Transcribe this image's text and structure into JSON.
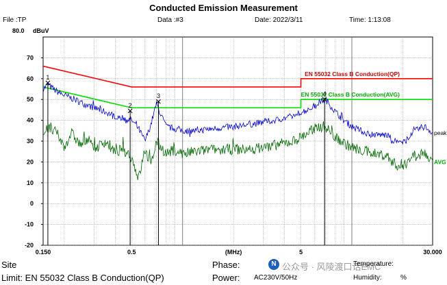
{
  "header": {
    "title": "Conducted Emission Measurement",
    "file": "File :TP",
    "data": "Data :#3",
    "date": "Date: 2022/3/11",
    "time": "Time: 1:13:08"
  },
  "footer": {
    "site": "Site",
    "limit": "Limit: EN 55032 Class B Conduction(QP)",
    "phase_label": "Phase:",
    "power_label": "Power:",
    "power_value": "AC230V/50Hz",
    "temperature_label": "Temperature:",
    "humidity_label": "Humidity:",
    "humidity_value": "%",
    "watermark": "公众号 · 风陵渡口话EMC",
    "watermark_logo": "N"
  },
  "chart_data": {
    "type": "line",
    "ytop_label": "80.0",
    "yunit": "dBuV",
    "xunit": "(MHz)",
    "xlog": true,
    "xlim": [
      0.15,
      30
    ],
    "ylim": [
      -20,
      80
    ],
    "yticks": [
      -20,
      -10,
      0,
      10,
      20,
      30,
      40,
      50,
      60,
      70
    ],
    "xticks": [
      {
        "v": 0.15,
        "label": "0.150"
      },
      {
        "v": 0.5,
        "label": "0.5"
      },
      {
        "v": 5,
        "label": "5"
      },
      {
        "v": 30,
        "label": "30.000"
      }
    ],
    "x_unit_at": 2,
    "limits": [
      {
        "name": "EN 55032 Class B Conduction(QP)",
        "color": "#ff0000",
        "x": [
          0.15,
          0.5,
          0.5,
          5,
          5,
          30
        ],
        "y": [
          66,
          56,
          56,
          56,
          60,
          60
        ]
      },
      {
        "name": "EN 55032 Class B Conduction(AVG)",
        "color": "#00dd00",
        "x": [
          0.15,
          0.5,
          0.5,
          5,
          5,
          30
        ],
        "y": [
          56,
          46,
          46,
          46,
          50,
          50
        ]
      }
    ],
    "series": [
      {
        "name": "peak",
        "color": "#0000cc",
        "x": [
          0.15,
          0.16,
          0.18,
          0.2,
          0.23,
          0.26,
          0.3,
          0.35,
          0.4,
          0.45,
          0.5,
          0.55,
          0.6,
          0.65,
          0.7,
          0.75,
          0.8,
          0.9,
          1.0,
          1.2,
          1.5,
          2.0,
          2.5,
          3.0,
          3.5,
          4.0,
          4.5,
          5.0,
          5.5,
          6.0,
          6.5,
          7.0,
          7.5,
          8.0,
          9.0,
          10,
          12,
          14,
          16,
          18,
          20,
          22,
          25,
          27,
          30
        ],
        "y": [
          55,
          57,
          54,
          52,
          50,
          48,
          46,
          44,
          42,
          41,
          40,
          36,
          30,
          38,
          48,
          42,
          37,
          36,
          35,
          35,
          36,
          37,
          38,
          39,
          40,
          41,
          42,
          44,
          45,
          47,
          49,
          50,
          47,
          44,
          40,
          37,
          34,
          33,
          33,
          30,
          29,
          33,
          36,
          37,
          34
        ]
      },
      {
        "name": "AVG",
        "color": "#006600",
        "x": [
          0.15,
          0.16,
          0.18,
          0.2,
          0.22,
          0.25,
          0.28,
          0.3,
          0.35,
          0.4,
          0.45,
          0.5,
          0.55,
          0.6,
          0.65,
          0.7,
          0.8,
          0.9,
          1.0,
          1.2,
          1.5,
          2.0,
          2.5,
          3.0,
          3.5,
          4.0,
          4.5,
          5.0,
          5.5,
          6.0,
          6.5,
          7.0,
          7.5,
          8.0,
          9.0,
          10,
          12,
          14,
          16,
          18,
          20,
          22,
          25,
          27,
          30
        ],
        "y": [
          33,
          36,
          34,
          27,
          34,
          28,
          32,
          26,
          30,
          24,
          27,
          22,
          12,
          26,
          18,
          30,
          24,
          26,
          24,
          25,
          26,
          26,
          26,
          27,
          28,
          29,
          30,
          32,
          34,
          36,
          37,
          37,
          34,
          32,
          29,
          27,
          25,
          24,
          23,
          19,
          17,
          22,
          25,
          24,
          20
        ]
      }
    ],
    "markers": [
      {
        "label": "1",
        "x": 0.16,
        "y": 58
      },
      {
        "label": "2",
        "x": 0.49,
        "y": 44.5
      },
      {
        "label": "3",
        "x": 0.72,
        "y": 49
      },
      {
        "label": "4",
        "x": 6.9,
        "y": 50
      }
    ]
  }
}
